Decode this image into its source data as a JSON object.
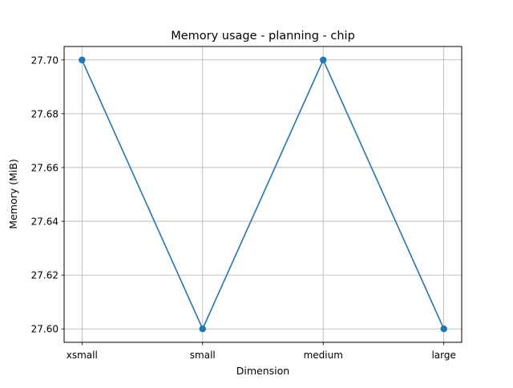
{
  "chart_data": {
    "type": "line",
    "title": "Memory usage - planning - chip",
    "xlabel": "Dimension",
    "ylabel": "Memory (MiB)",
    "categories": [
      "xsmall",
      "small",
      "medium",
      "large"
    ],
    "values": [
      27.7,
      27.6,
      27.7,
      27.6
    ],
    "ylim": [
      27.595,
      27.705
    ],
    "yticks": [
      27.6,
      27.62,
      27.64,
      27.66,
      27.68,
      27.7
    ],
    "ytick_labels": [
      "27.60",
      "27.62",
      "27.64",
      "27.66",
      "27.68",
      "27.70"
    ],
    "grid": true,
    "marker": "circle",
    "colors": {
      "series": "#1f77b4",
      "grid": "#b0b0b0",
      "axes": "#000000"
    }
  }
}
